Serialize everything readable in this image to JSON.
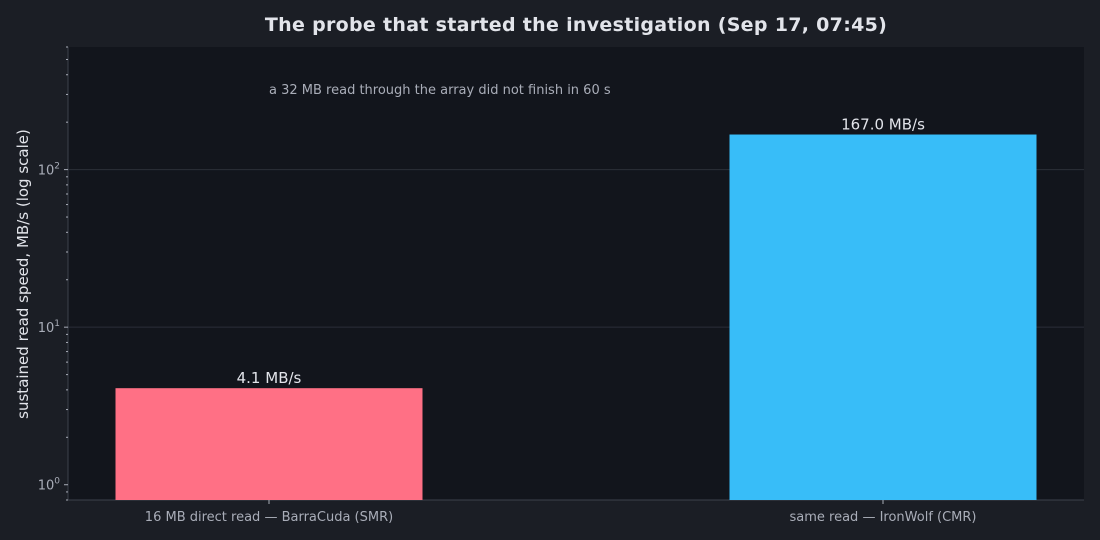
{
  "chart_data": {
    "type": "bar",
    "title": "The probe that started the investigation (Sep 17, 07:45)",
    "ylabel": "sustained read speed, MB/s (log scale)",
    "xlabel": "",
    "yscale": "log",
    "ylim": [
      0.8,
      600
    ],
    "yticks": [
      1,
      10,
      100
    ],
    "ytick_labels": [
      {
        "base": "10",
        "exp": "0"
      },
      {
        "base": "10",
        "exp": "1"
      },
      {
        "base": "10",
        "exp": "2"
      }
    ],
    "grid": "y-major",
    "categories": [
      "16 MB direct read — BarraCuda (SMR)",
      "same read — IronWolf (CMR)"
    ],
    "values": [
      4.1,
      167.0
    ],
    "value_labels": [
      "4.1 MB/s",
      "167.0 MB/s"
    ],
    "colors": [
      "#ff7085",
      "#38bdf8"
    ],
    "annotation": "a 32 MB read through the array did not finish in 60 s"
  },
  "colors": {
    "background": "#1b1e25",
    "plot_background": "#12151c",
    "grid": "#2b2f38",
    "axis": "#3c414c",
    "text": "#e2e4ea",
    "muted_text": "#a9adb8"
  }
}
